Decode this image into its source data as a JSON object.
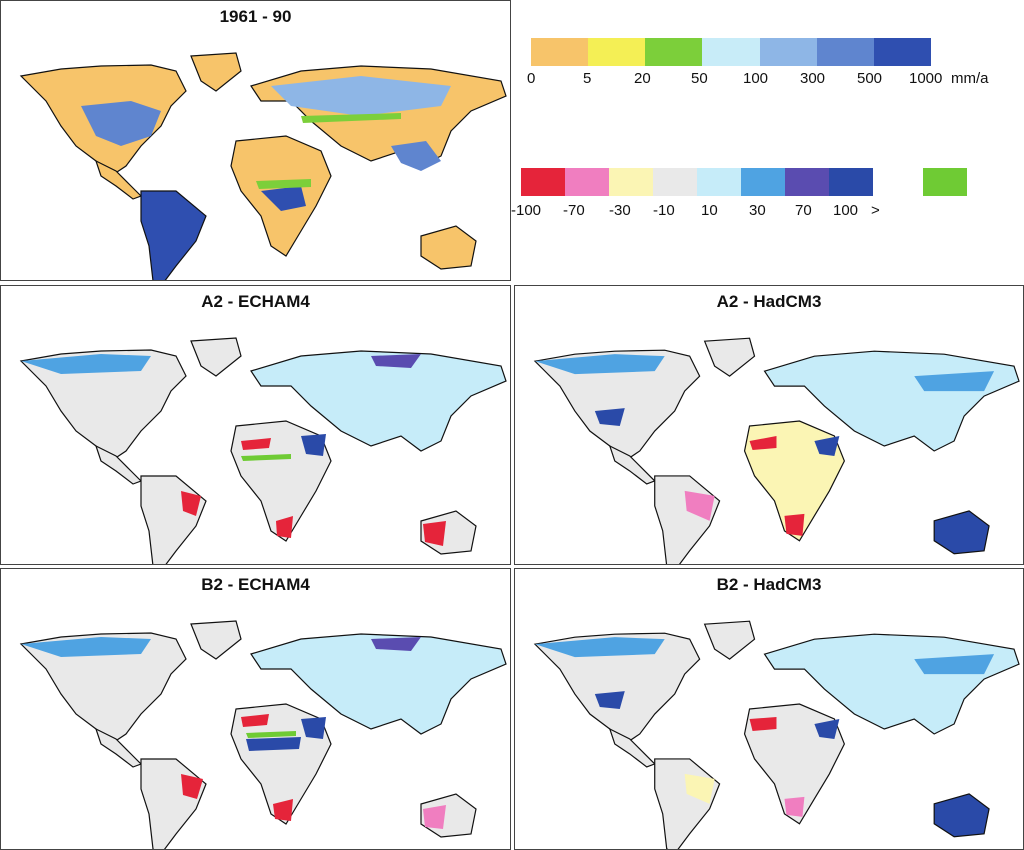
{
  "panels": {
    "baseline": {
      "title": "1961 - 90"
    },
    "a2_echam4": {
      "title": "A2 - ECHAM4"
    },
    "a2_hadcm3": {
      "title": "A2 - HadCM3"
    },
    "b2_echam4": {
      "title": "B2 - ECHAM4"
    },
    "b2_hadcm3": {
      "title": "B2 - HadCM3"
    }
  },
  "legend_absolute": {
    "colors": [
      "#f7c46a",
      "#f4ef55",
      "#7ccf3a",
      "#c8ecf8",
      "#8eb6e6",
      "#5f85cf",
      "#2f4fb0"
    ],
    "ticks": [
      "0",
      "5",
      "20",
      "50",
      "100",
      "300",
      "500",
      "1000"
    ],
    "unit": "mm/a"
  },
  "legend_change": {
    "colors": [
      "#e5243a",
      "#f07ec0",
      "#fbf5b4",
      "#e9e9e9",
      "#c6ecf9",
      "#4fa3e2",
      "#5a4cb0",
      "#2a4aa8"
    ],
    "ticks": [
      "-100",
      "-70",
      "-30",
      "-10",
      "10",
      "30",
      "70",
      "100",
      ">"
    ],
    "extra_color": "#6fcb34"
  },
  "colors": {
    "ocean": "#ffffff",
    "outline": "#111111",
    "baseline_land": "#f7c46a",
    "baseline_wet": "#5f85cf",
    "baseline_veryweet": "#2f4fb0",
    "change_neutral": "#e9e9e9",
    "change_wet": "#c6ecf9",
    "change_wetter": "#4fa3e2",
    "change_dry": "#e5243a",
    "change_pink": "#f07ec0",
    "change_yellow": "#fbf5b4"
  }
}
